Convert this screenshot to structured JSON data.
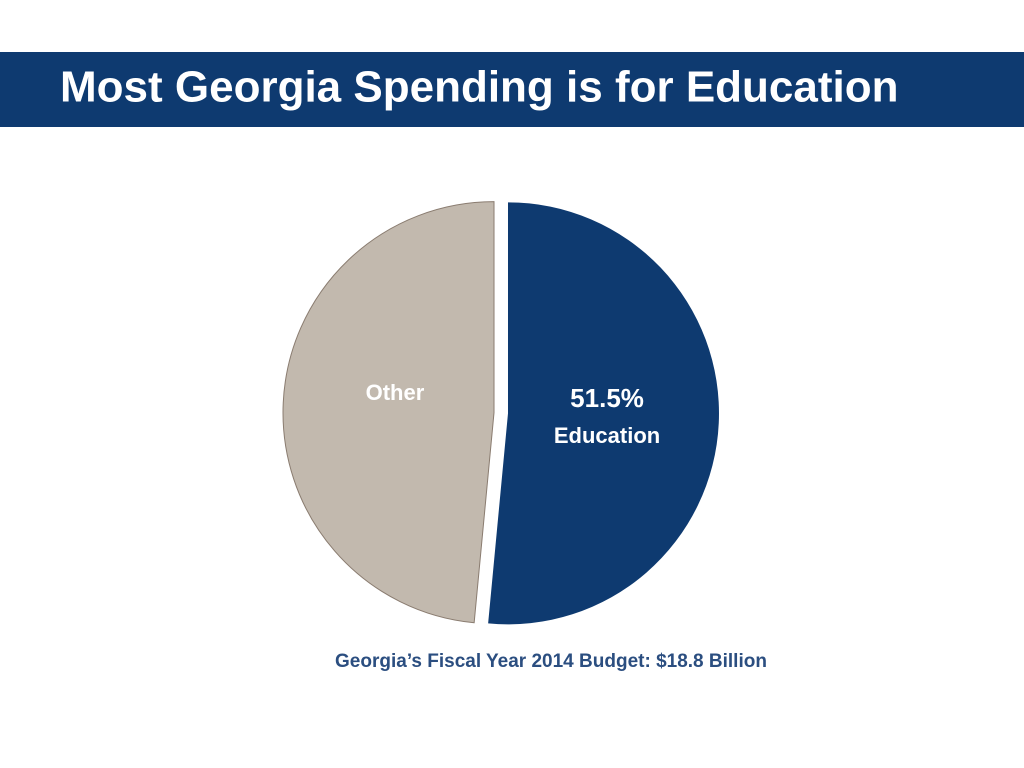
{
  "chart_data": {
    "type": "pie",
    "title": "Most Georgia Spending is for Education",
    "caption": "Georgia’s Fiscal Year 2014 Budget:  $18.8 Billion",
    "categories": [
      "Education",
      "Other"
    ],
    "values": [
      51.5,
      48.5
    ],
    "value_labels": [
      "51.5%",
      null
    ],
    "colors": [
      "#0e3a70",
      "#c2b9ae"
    ],
    "label_colors": [
      "#ffffff",
      "#ffffff"
    ]
  }
}
